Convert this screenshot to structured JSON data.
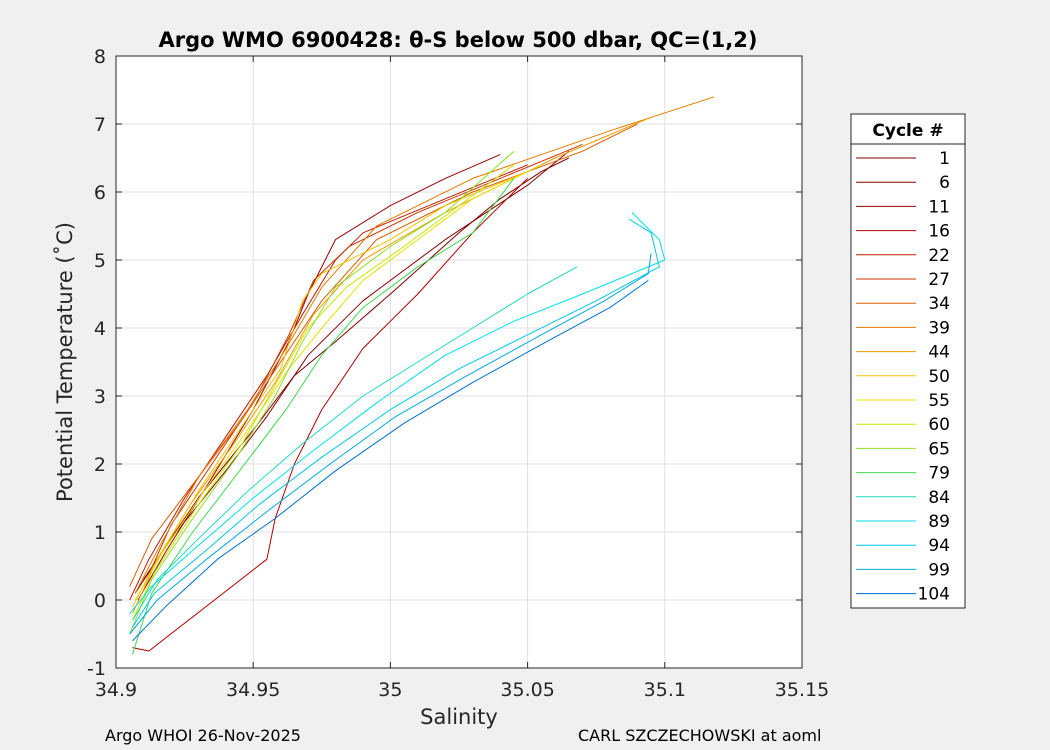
{
  "chart_data": {
    "type": "line",
    "title": "Argo WMO 6900428: θ-S below 500 dbar,  QC=(1,2)",
    "xlabel": "Salinity",
    "ylabel": "Potential Temperature (˚C)",
    "xlim": [
      34.9,
      35.15
    ],
    "ylim": [
      -1,
      8
    ],
    "xticks": [
      34.9,
      34.95,
      35,
      35.05,
      35.1,
      35.15
    ],
    "xtick_labels": [
      "34.9",
      "34.95",
      "35",
      "35.05",
      "35.1",
      "35.15"
    ],
    "yticks": [
      -1,
      0,
      1,
      2,
      3,
      4,
      5,
      6,
      7,
      8
    ],
    "ytick_labels": [
      "-1",
      "0",
      "1",
      "2",
      "3",
      "4",
      "5",
      "6",
      "7",
      "8"
    ],
    "grid": true,
    "legend": {
      "title": "Cycle #",
      "placement": "outside-right",
      "entries": [
        "1",
        "6",
        "11",
        "16",
        "22",
        "27",
        "34",
        "39",
        "44",
        "50",
        "55",
        "60",
        "65",
        "79",
        "84",
        "89",
        "94",
        "99",
        "104"
      ],
      "colors": [
        "#800000",
        "#8c0000",
        "#990000",
        "#b30000",
        "#c01800",
        "#cc3300",
        "#dd5a00",
        "#e67a00",
        "#f09a00",
        "#f0c400",
        "#e8e000",
        "#c8e600",
        "#90e020",
        "#40d850",
        "#20d8c0",
        "#00e0e8",
        "#00c8e8",
        "#00a8e0",
        "#0070d0"
      ]
    },
    "series": [
      {
        "name": "1",
        "color": "#800000",
        "points": [
          [
            34.907,
            0.1
          ],
          [
            34.915,
            0.6
          ],
          [
            34.93,
            1.5
          ],
          [
            34.95,
            2.5
          ],
          [
            34.965,
            3.3
          ],
          [
            34.98,
            3.8
          ],
          [
            35.0,
            4.5
          ],
          [
            35.025,
            5.4
          ],
          [
            35.04,
            5.9
          ],
          [
            35.055,
            6.3
          ],
          [
            35.065,
            6.5
          ]
        ]
      },
      {
        "name": "6",
        "color": "#8c0000",
        "points": [
          [
            34.91,
            0.3
          ],
          [
            34.92,
            0.9
          ],
          [
            34.94,
            1.9
          ],
          [
            34.955,
            2.7
          ],
          [
            34.97,
            3.6
          ],
          [
            34.99,
            4.4
          ],
          [
            35.02,
            5.3
          ],
          [
            35.05,
            6.1
          ],
          [
            35.065,
            6.6
          ]
        ]
      },
      {
        "name": "11",
        "color": "#990000",
        "points": [
          [
            34.908,
            0.0
          ],
          [
            34.918,
            0.7
          ],
          [
            34.935,
            1.8
          ],
          [
            34.95,
            2.8
          ],
          [
            34.963,
            3.8
          ],
          [
            34.97,
            4.5
          ],
          [
            34.98,
            5.3
          ],
          [
            35.0,
            5.8
          ],
          [
            35.02,
            6.2
          ],
          [
            35.04,
            6.55
          ]
        ]
      },
      {
        "name": "16",
        "color": "#b30000",
        "points": [
          [
            34.906,
            -0.7
          ],
          [
            34.912,
            -0.75
          ],
          [
            34.955,
            0.6
          ],
          [
            34.958,
            1.2
          ],
          [
            34.965,
            2.0
          ],
          [
            34.975,
            2.8
          ],
          [
            34.99,
            3.7
          ],
          [
            35.01,
            4.5
          ],
          [
            35.03,
            5.4
          ],
          [
            35.05,
            6.2
          ]
        ]
      },
      {
        "name": "22",
        "color": "#c01800",
        "points": [
          [
            34.905,
            0.0
          ],
          [
            34.912,
            0.6
          ],
          [
            34.925,
            1.5
          ],
          [
            34.94,
            2.4
          ],
          [
            34.955,
            3.3
          ],
          [
            34.968,
            4.2
          ],
          [
            34.98,
            5.0
          ],
          [
            34.99,
            5.4
          ],
          [
            35.02,
            5.9
          ],
          [
            35.05,
            6.4
          ]
        ]
      },
      {
        "name": "27",
        "color": "#cc3300",
        "points": [
          [
            34.91,
            0.2
          ],
          [
            34.92,
            1.1
          ],
          [
            34.935,
            2.0
          ],
          [
            34.95,
            2.9
          ],
          [
            34.963,
            3.9
          ],
          [
            34.972,
            4.7
          ],
          [
            34.985,
            5.2
          ],
          [
            35.01,
            5.7
          ],
          [
            35.04,
            6.2
          ],
          [
            35.07,
            6.7
          ]
        ]
      },
      {
        "name": "34",
        "color": "#dd5a00",
        "points": [
          [
            34.905,
            0.2
          ],
          [
            34.913,
            0.9
          ],
          [
            34.928,
            1.7
          ],
          [
            34.945,
            2.6
          ],
          [
            34.96,
            3.5
          ],
          [
            34.975,
            4.4
          ],
          [
            34.995,
            5.3
          ],
          [
            35.03,
            6.0
          ],
          [
            35.07,
            6.6
          ],
          [
            35.09,
            7.0
          ]
        ]
      },
      {
        "name": "39",
        "color": "#e67a00",
        "points": [
          [
            34.907,
            0.1
          ],
          [
            34.916,
            0.8
          ],
          [
            34.93,
            1.8
          ],
          [
            34.948,
            2.8
          ],
          [
            34.962,
            3.7
          ],
          [
            34.975,
            4.6
          ],
          [
            34.995,
            5.5
          ],
          [
            35.03,
            6.2
          ],
          [
            35.08,
            6.9
          ],
          [
            35.118,
            7.4
          ]
        ]
      },
      {
        "name": "44",
        "color": "#f09a00",
        "points": [
          [
            34.906,
            -0.2
          ],
          [
            34.914,
            0.5
          ],
          [
            34.927,
            1.4
          ],
          [
            34.943,
            2.3
          ],
          [
            34.958,
            3.2
          ],
          [
            34.972,
            4.2
          ],
          [
            34.99,
            5.0
          ],
          [
            35.02,
            5.7
          ],
          [
            35.06,
            6.5
          ],
          [
            35.095,
            7.1
          ]
        ]
      },
      {
        "name": "50",
        "color": "#f0c400",
        "points": [
          [
            34.906,
            -0.1
          ],
          [
            34.915,
            0.6
          ],
          [
            34.93,
            1.6
          ],
          [
            34.945,
            2.5
          ],
          [
            34.96,
            3.4
          ],
          [
            34.968,
            4.4
          ],
          [
            34.975,
            4.8
          ],
          [
            35.0,
            5.3
          ],
          [
            35.02,
            5.8
          ],
          [
            35.05,
            6.3
          ]
        ]
      },
      {
        "name": "55",
        "color": "#e8e000",
        "points": [
          [
            34.907,
            0.0
          ],
          [
            34.917,
            0.7
          ],
          [
            34.932,
            1.6
          ],
          [
            34.948,
            2.5
          ],
          [
            34.963,
            3.4
          ],
          [
            34.975,
            4.0
          ],
          [
            34.99,
            4.7
          ],
          [
            35.01,
            5.3
          ],
          [
            35.03,
            5.9
          ],
          [
            35.055,
            6.4
          ]
        ]
      },
      {
        "name": "60",
        "color": "#c8e600",
        "points": [
          [
            34.906,
            -0.3
          ],
          [
            34.914,
            0.4
          ],
          [
            34.93,
            1.4
          ],
          [
            34.946,
            2.3
          ],
          [
            34.96,
            3.3
          ],
          [
            34.97,
            4.0
          ],
          [
            34.984,
            4.6
          ],
          [
            35.005,
            5.2
          ],
          [
            35.025,
            5.8
          ],
          [
            35.045,
            6.4
          ]
        ]
      },
      {
        "name": "65",
        "color": "#90e020",
        "points": [
          [
            34.905,
            -0.5
          ],
          [
            34.913,
            0.3
          ],
          [
            34.928,
            1.2
          ],
          [
            34.944,
            2.1
          ],
          [
            34.958,
            3.0
          ],
          [
            34.968,
            3.8
          ],
          [
            34.98,
            4.6
          ],
          [
            35.0,
            5.2
          ],
          [
            35.02,
            5.7
          ],
          [
            35.045,
            6.6
          ]
        ]
      },
      {
        "name": "79",
        "color": "#40d850",
        "points": [
          [
            34.906,
            -0.8
          ],
          [
            34.913,
            0.1
          ],
          [
            34.928,
            1.0
          ],
          [
            34.945,
            1.9
          ],
          [
            34.962,
            2.8
          ],
          [
            34.975,
            3.6
          ],
          [
            34.99,
            4.3
          ],
          [
            35.01,
            4.9
          ],
          [
            35.03,
            5.4
          ],
          [
            35.045,
            6.2
          ]
        ]
      },
      {
        "name": "84",
        "color": "#20d8c0",
        "points": [
          [
            34.906,
            -0.3
          ],
          [
            34.915,
            0.3
          ],
          [
            34.93,
            0.9
          ],
          [
            34.948,
            1.6
          ],
          [
            34.968,
            2.3
          ],
          [
            34.99,
            3.0
          ],
          [
            35.01,
            3.5
          ],
          [
            35.03,
            4.0
          ],
          [
            35.05,
            4.5
          ],
          [
            35.068,
            4.9
          ]
        ]
      },
      {
        "name": "89",
        "color": "#00e0e8",
        "points": [
          [
            34.905,
            -0.2
          ],
          [
            34.913,
            0.2
          ],
          [
            34.93,
            0.8
          ],
          [
            34.95,
            1.5
          ],
          [
            34.972,
            2.2
          ],
          [
            34.995,
            2.9
          ],
          [
            35.02,
            3.6
          ],
          [
            35.045,
            4.1
          ],
          [
            35.07,
            4.5
          ],
          [
            35.1,
            5.0
          ],
          [
            35.098,
            5.3
          ],
          [
            35.088,
            5.7
          ]
        ]
      },
      {
        "name": "94",
        "color": "#00c8e8",
        "points": [
          [
            34.906,
            -0.4
          ],
          [
            34.914,
            0.1
          ],
          [
            34.932,
            0.7
          ],
          [
            34.952,
            1.4
          ],
          [
            34.975,
            2.1
          ],
          [
            35.0,
            2.8
          ],
          [
            35.025,
            3.4
          ],
          [
            35.05,
            3.9
          ],
          [
            35.075,
            4.4
          ],
          [
            35.098,
            4.9
          ],
          [
            35.095,
            5.4
          ],
          [
            35.087,
            5.6
          ]
        ]
      },
      {
        "name": "99",
        "color": "#00a8e0",
        "points": [
          [
            34.905,
            -0.5
          ],
          [
            34.915,
            0.0
          ],
          [
            34.933,
            0.6
          ],
          [
            34.955,
            1.3
          ],
          [
            34.978,
            2.0
          ],
          [
            35.002,
            2.7
          ],
          [
            35.028,
            3.3
          ],
          [
            35.055,
            3.9
          ],
          [
            35.078,
            4.4
          ],
          [
            35.094,
            4.8
          ],
          [
            35.095,
            5.1
          ]
        ]
      },
      {
        "name": "104",
        "color": "#0070d0",
        "points": [
          [
            34.906,
            -0.6
          ],
          [
            34.918,
            -0.1
          ],
          [
            34.937,
            0.6
          ],
          [
            34.958,
            1.2
          ],
          [
            34.98,
            1.9
          ],
          [
            35.005,
            2.6
          ],
          [
            35.03,
            3.2
          ],
          [
            35.057,
            3.8
          ],
          [
            35.08,
            4.3
          ],
          [
            35.094,
            4.7
          ]
        ]
      }
    ]
  },
  "footer": {
    "left": "Argo WHOI 26-Nov-2025",
    "right": "CARL SZCZECHOWSKI at aoml"
  }
}
